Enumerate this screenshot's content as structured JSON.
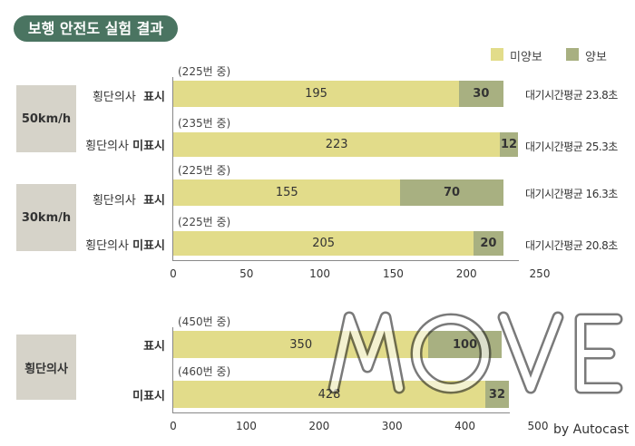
{
  "title": "보행 안전도 실험 결과",
  "legend": [
    {
      "label": "미양보",
      "color": "#e2dc8a"
    },
    {
      "label": "양보",
      "color": "#a8b081"
    }
  ],
  "chart_data": [
    {
      "type": "bar",
      "orientation": "horizontal",
      "stacked": true,
      "xlim": [
        0,
        250
      ],
      "xticks": [
        "0",
        "50",
        "100",
        "150",
        "200",
        "250"
      ],
      "groups": [
        {
          "label": "50km/h",
          "rows": [
            {
              "prefix": "횡단의사",
              "bold": "표시",
              "total_label": "(225번 중)",
              "series": {
                "미양보": 195,
                "양보": 30
              },
              "note": "대기시간평균 23.8초"
            },
            {
              "prefix": "횡단의사",
              "bold": "미표시",
              "total_label": "(235번 중)",
              "series": {
                "미양보": 223,
                "양보": 12
              },
              "note": "대기시간평균 25.3초"
            }
          ]
        },
        {
          "label": "30km/h",
          "rows": [
            {
              "prefix": "횡단의사",
              "bold": "표시",
              "total_label": "(225번 중)",
              "series": {
                "미양보": 155,
                "양보": 70
              },
              "note": "대기시간평균 16.3초"
            },
            {
              "prefix": "횡단의사",
              "bold": "미표시",
              "total_label": "(225번 중)",
              "series": {
                "미양보": 205,
                "양보": 20
              },
              "note": "대기시간평균 20.8초"
            }
          ]
        }
      ]
    },
    {
      "type": "bar",
      "orientation": "horizontal",
      "stacked": true,
      "xlim": [
        0,
        500
      ],
      "xticks": [
        "0",
        "100",
        "200",
        "300",
        "400",
        "500"
      ],
      "groups": [
        {
          "label": "횡단의사",
          "rows": [
            {
              "prefix": "",
              "bold": "표시",
              "total_label": "(450번 중)",
              "series": {
                "미양보": 350,
                "양보": 100
              }
            },
            {
              "prefix": "",
              "bold": "미표시",
              "total_label": "(460번 중)",
              "series": {
                "미양보": 428,
                "양보": 32
              }
            }
          ]
        }
      ]
    }
  ],
  "watermark": {
    "text": "MOVE",
    "sub": "by Autocast"
  }
}
